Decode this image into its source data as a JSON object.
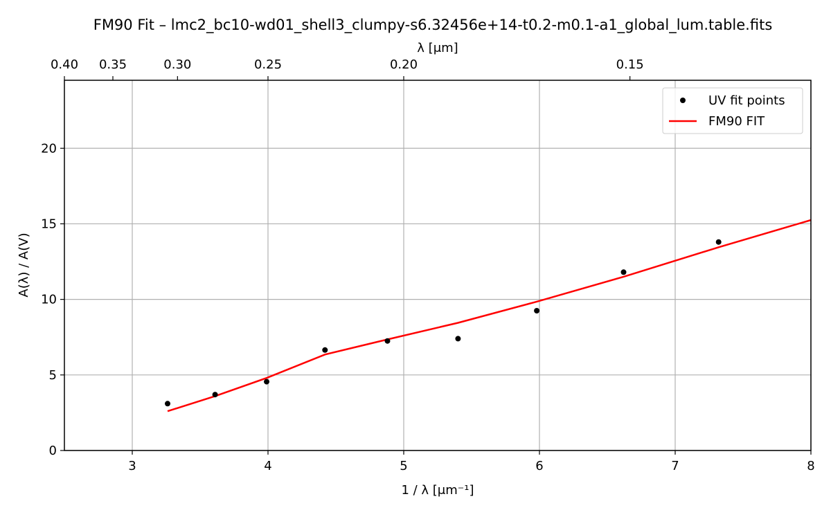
{
  "chart_data": {
    "type": "scatter",
    "title": "FM90 Fit – lmc2_bc10-wd01_shell3_clumpy-s6.32456e+14-t0.2-m0.1-a1_global_lum.table.fits",
    "xlabel": "1 / λ [μm⁻¹]",
    "ylabel": "A(λ) / A(V)",
    "top_xlabel": "λ [μm]",
    "xlim": [
      2.5,
      8.0
    ],
    "ylim": [
      0,
      24.5
    ],
    "x_ticks": [
      3,
      4,
      5,
      6,
      7,
      8
    ],
    "x_tick_labels": [
      "3",
      "4",
      "5",
      "6",
      "7",
      "8"
    ],
    "y_ticks": [
      0,
      5,
      10,
      15,
      20
    ],
    "y_tick_labels": [
      "0",
      "5",
      "10",
      "15",
      "20"
    ],
    "top_ticks": [
      0.4,
      0.35,
      0.3,
      0.25,
      0.2,
      0.15
    ],
    "top_tick_labels": [
      "0.40",
      "0.35",
      "0.30",
      "0.25",
      "0.20",
      "0.15"
    ],
    "grid": true,
    "legend_position": "top-right",
    "series": [
      {
        "name": "UV fit points",
        "kind": "scatter",
        "color": "#000000",
        "x": [
          3.26,
          3.61,
          3.99,
          4.42,
          4.88,
          5.4,
          5.98,
          6.62,
          7.32
        ],
        "y": [
          3.1,
          3.7,
          4.55,
          6.65,
          7.25,
          7.4,
          9.25,
          11.8,
          13.8
        ]
      },
      {
        "name": "FM90 FIT",
        "kind": "line",
        "color": "#ff0000",
        "x": [
          3.26,
          3.61,
          3.99,
          4.42,
          4.88,
          5.4,
          5.98,
          6.62,
          7.32,
          8.0
        ],
        "y": [
          2.6,
          3.6,
          4.8,
          6.35,
          7.35,
          8.45,
          9.85,
          11.5,
          13.45,
          15.25
        ]
      }
    ]
  }
}
